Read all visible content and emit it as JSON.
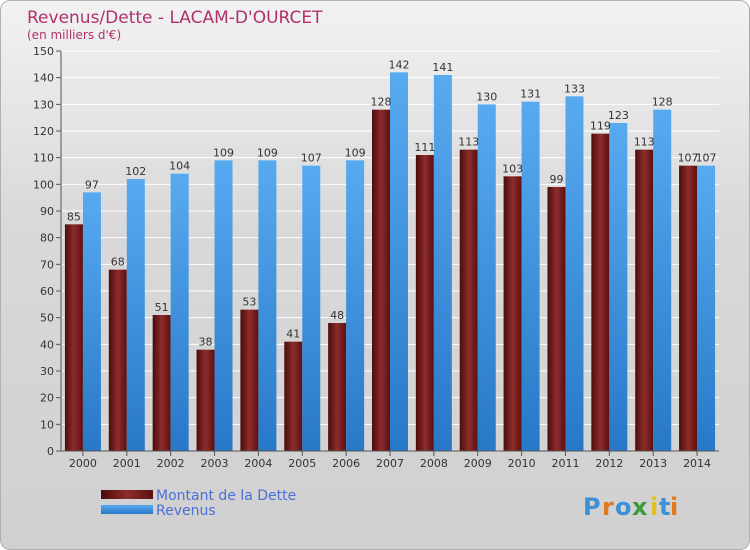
{
  "chart_data": {
    "type": "bar",
    "title": "Revenus/Dette - LACAM-D'OURCET",
    "subtitle": "(en milliers d'€)",
    "categories": [
      "2000",
      "2001",
      "2002",
      "2003",
      "2004",
      "2005",
      "2006",
      "2007",
      "2008",
      "2009",
      "2010",
      "2011",
      "2012",
      "2013",
      "2014"
    ],
    "series": [
      {
        "name": "Montant de la Dette",
        "color": "#7a1f1f",
        "values": [
          85,
          68,
          51,
          38,
          53,
          41,
          48,
          128,
          111,
          113,
          103,
          99,
          119,
          113,
          107
        ]
      },
      {
        "name": "Revenus",
        "color": "#3d97e0",
        "values": [
          97,
          102,
          104,
          109,
          109,
          107,
          109,
          142,
          141,
          130,
          131,
          133,
          123,
          128,
          107
        ]
      }
    ],
    "ylim": [
      0,
      150
    ],
    "yticks": [
      0,
      10,
      20,
      30,
      40,
      50,
      60,
      70,
      80,
      90,
      100,
      110,
      120,
      130,
      140,
      150
    ],
    "grid": true,
    "legend": "bottom-left"
  },
  "logo": {
    "letters": [
      "P",
      "r",
      "o",
      "x",
      "i",
      "t",
      "i"
    ],
    "colors": [
      "#3d8fd8",
      "#e07a1f",
      "#3d8fd8",
      "#3a9b3a",
      "#e0c21f",
      "#3d8fd8",
      "#e07a1f"
    ]
  }
}
